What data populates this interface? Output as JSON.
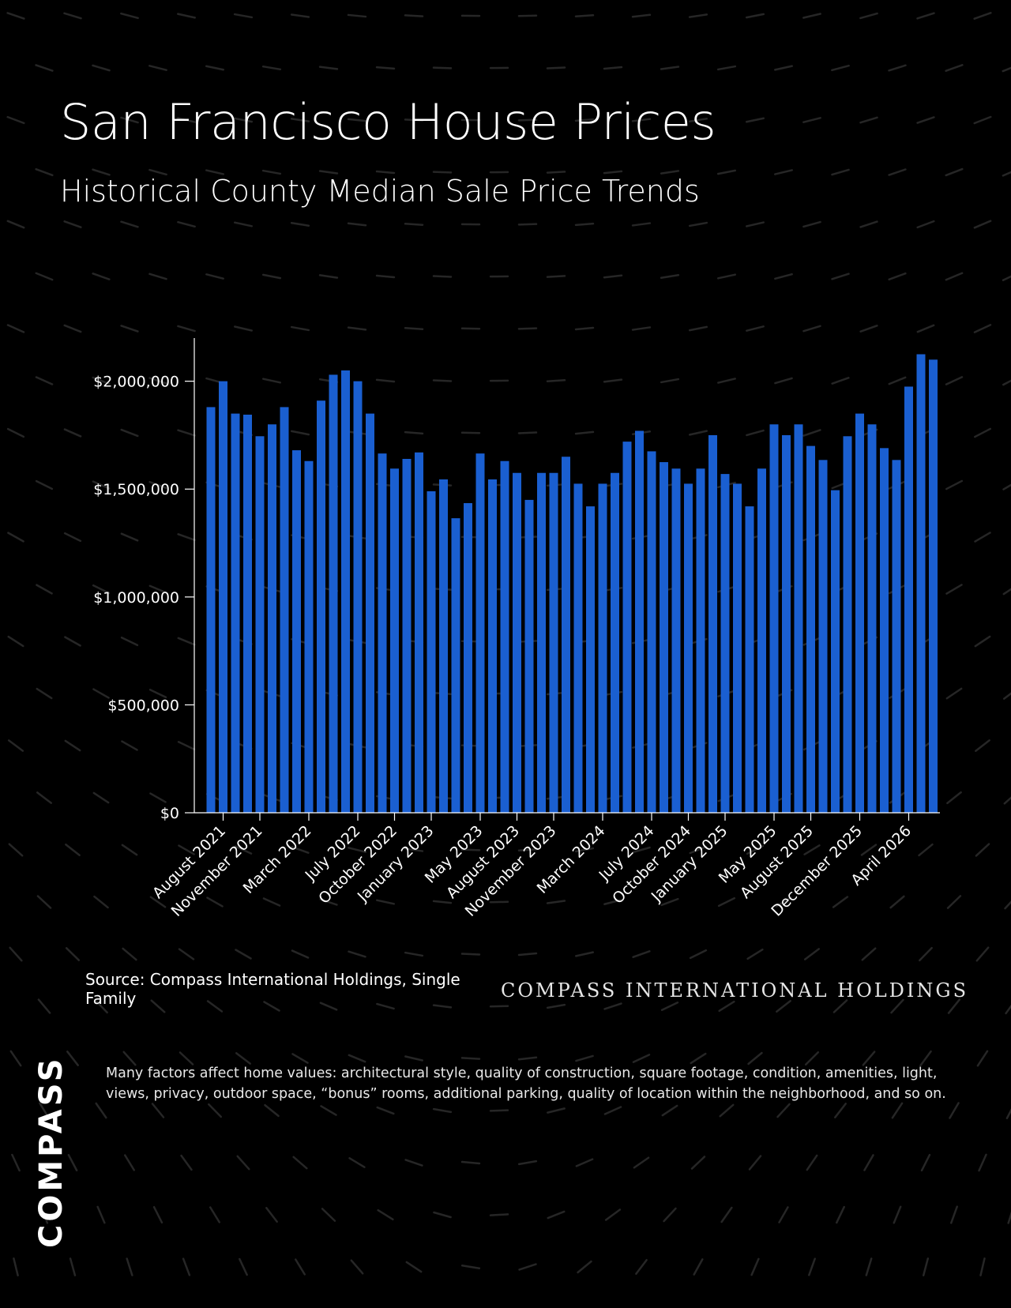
{
  "header": {
    "title": "San Francisco House Prices",
    "subtitle": "Historical County Median Sale Price Trends"
  },
  "chart_data": {
    "type": "bar",
    "bar_color": "#1a5fd1",
    "ylim": [
      0,
      2200000
    ],
    "y_ticks": [
      0,
      500000,
      1000000,
      1500000,
      2000000
    ],
    "y_tick_labels": [
      "$0",
      "$500,000",
      "$1,000,000",
      "$1,500,000",
      "$2,000,000"
    ],
    "x_tick_labels": [
      "August 2021",
      "November 2021",
      "March 2022",
      "July 2022",
      "October 2022",
      "January 2023",
      "May 2023",
      "August 2023",
      "November 2023",
      "March 2024",
      "July 2024",
      "October 2024",
      "January 2025",
      "May 2025",
      "August 2025",
      "December 2025",
      "April 2026"
    ],
    "x_tick_label_indices": [
      1,
      4,
      8,
      12,
      15,
      18,
      22,
      25,
      28,
      32,
      36,
      39,
      42,
      46,
      49,
      53,
      57
    ],
    "values": [
      1880000,
      2000000,
      1850000,
      1845000,
      1745000,
      1800000,
      1880000,
      1680000,
      1630000,
      1910000,
      2030000,
      2050000,
      2000000,
      1850000,
      1665000,
      1595000,
      1640000,
      1670000,
      1490000,
      1545000,
      1365000,
      1435000,
      1665000,
      1545000,
      1630000,
      1575000,
      1450000,
      1575000,
      1575000,
      1650000,
      1525000,
      1420000,
      1525000,
      1575000,
      1720000,
      1770000,
      1675000,
      1625000,
      1595000,
      1525000,
      1595000,
      1750000,
      1570000,
      1525000,
      1420000,
      1595000,
      1800000,
      1750000,
      1800000,
      1700000,
      1635000,
      1495000,
      1745000,
      1850000,
      1800000,
      1690000,
      1635000,
      1975000,
      2125000,
      2100000
    ]
  },
  "footer": {
    "source": "Source: Compass International Holdings, Single Family",
    "brand_text": "COMPASS INTERNATIONAL HOLDINGS",
    "disclaimer": "Many factors affect home values: architectural style, quality of construction, square footage, condition, amenities, light, views, privacy, outdoor space, “bonus” rooms, additional parking, quality of location within the neighborhood, and so on.",
    "logo": "COMPASS"
  }
}
